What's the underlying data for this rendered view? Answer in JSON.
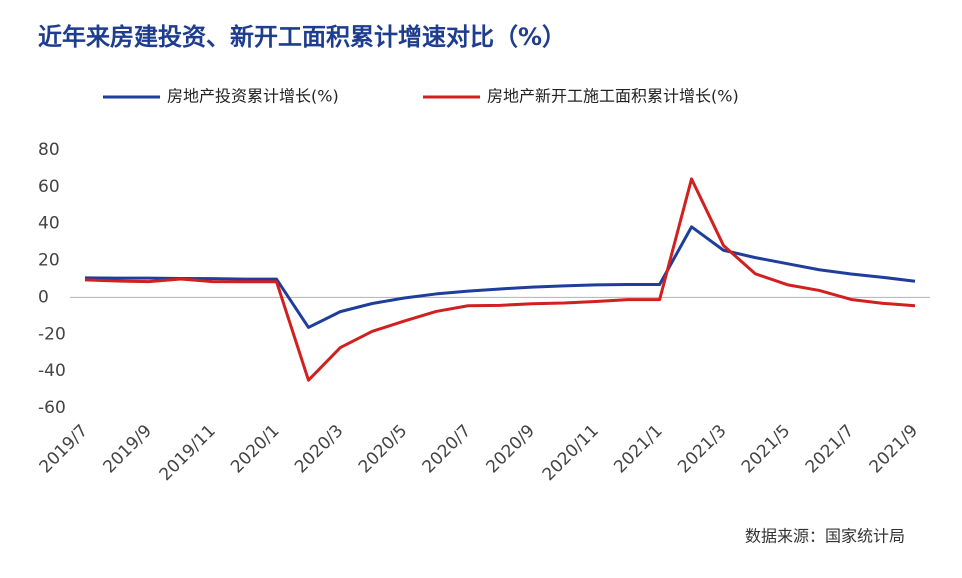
{
  "chart_data": {
    "type": "line",
    "title": "近年来房建投资、新开工面积累计增速对比（%）",
    "source": "数据来源：国家统计局",
    "categories": [
      "2019/7",
      null,
      "2019/9",
      null,
      "2019/11",
      null,
      "2020/1",
      null,
      "2020/3",
      null,
      "2020/5",
      null,
      "2020/7",
      null,
      "2020/9",
      null,
      "2020/11",
      null,
      "2021/1",
      null,
      "2021/3",
      null,
      "2021/5",
      null,
      "2021/7",
      null,
      "2021/9"
    ],
    "series": [
      {
        "name": "房地产投资累计增长(%)",
        "color": "#1f3d9c",
        "values": [
          10.6,
          10.5,
          10.5,
          10.3,
          10.2,
          9.9,
          9.9,
          -16.3,
          -7.7,
          -3.3,
          -0.3,
          1.9,
          3.4,
          4.6,
          5.6,
          6.3,
          6.8,
          7.0,
          7.0,
          38.3,
          25.6,
          21.6,
          18.3,
          15.0,
          12.7,
          10.9,
          8.8
        ]
      },
      {
        "name": "房地产新开工施工面积累计增长(%)",
        "color": "#d0201f",
        "values": [
          9.5,
          8.9,
          8.6,
          10.0,
          8.6,
          8.5,
          8.5,
          -44.9,
          -27.2,
          -18.4,
          -12.8,
          -7.6,
          -4.5,
          -4.3,
          -3.4,
          -3.0,
          -2.2,
          -1.2,
          -1.2,
          64.3,
          28.2,
          12.8,
          6.9,
          3.8,
          -1.1,
          -3.2,
          -4.5
        ]
      }
    ],
    "ylim": [
      -60,
      80
    ],
    "yticks": [
      -60,
      -40,
      -20,
      0,
      20,
      40,
      60,
      80
    ]
  }
}
